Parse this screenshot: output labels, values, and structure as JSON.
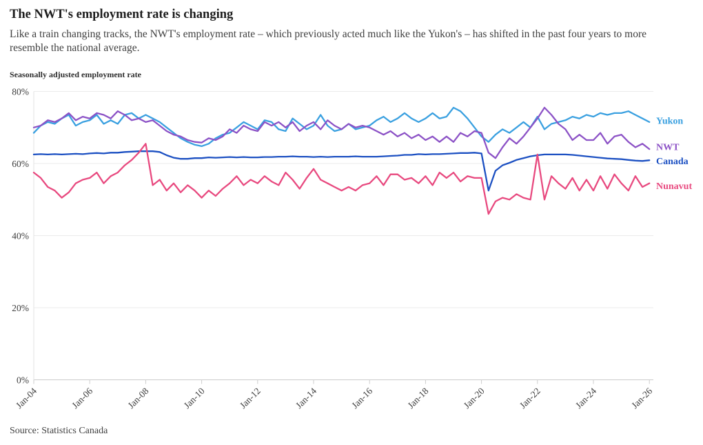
{
  "header": {
    "title": "The NWT's employment rate is changing",
    "subtitle": "Like a train changing tracks, the NWT's employment rate – which previously acted much like the Yukon's – has shifted in the past four years to more resemble the national average."
  },
  "footer": {
    "source": "Source: Statistics Canada"
  },
  "chart_data": {
    "type": "line",
    "title": "Seasonally adjusted employment rate",
    "xlabel": "",
    "ylabel": "Seasonally adjusted employment rate",
    "x_start": 2004,
    "x_step": 0.25,
    "xlim": [
      2004,
      2026
    ],
    "ylim": [
      0,
      80
    ],
    "grid": "horizontal",
    "legend_position": "right-end-labels",
    "yticks": [
      0,
      20,
      40,
      60,
      80
    ],
    "ytick_suffix": "%",
    "xticks": [
      2004,
      2006,
      2008,
      2010,
      2012,
      2014,
      2016,
      2018,
      2020,
      2022,
      2024,
      2026
    ],
    "xtick_labels": [
      "Jan-04",
      "Jan-06",
      "Jan-08",
      "Jan-10",
      "Jan-12",
      "Jan-14",
      "Jan-16",
      "Jan-18",
      "Jan-20",
      "Jan-22",
      "Jan-24",
      "Jan-26"
    ],
    "series": [
      {
        "name": "Yukon",
        "color": "#3AA0E0",
        "label_dy": -2,
        "values": [
          68.5,
          70.5,
          71.5,
          71.0,
          72.5,
          73.5,
          70.5,
          71.5,
          72.0,
          73.5,
          71.0,
          72.0,
          71.0,
          73.5,
          74.0,
          72.5,
          73.5,
          72.5,
          71.5,
          70.0,
          68.5,
          67.0,
          66.0,
          65.2,
          64.8,
          65.5,
          67.0,
          68.0,
          68.5,
          70.0,
          71.5,
          70.5,
          69.5,
          72.0,
          71.5,
          69.5,
          69.0,
          72.5,
          71.0,
          69.5,
          70.5,
          73.5,
          70.5,
          69.0,
          69.5,
          71.0,
          69.5,
          70.0,
          70.5,
          72.0,
          73.0,
          71.5,
          72.5,
          74.0,
          72.5,
          71.5,
          72.5,
          74.0,
          72.5,
          73.0,
          75.5,
          74.5,
          72.5,
          70.0,
          67.5,
          66.0,
          68.0,
          69.5,
          68.5,
          70.0,
          71.5,
          70.0,
          73.0,
          69.5,
          71.0,
          71.5,
          72.0,
          73.0,
          72.5,
          73.5,
          73.0,
          74.0,
          73.5,
          74.0,
          74.0,
          74.5,
          73.5,
          72.5,
          71.5
        ]
      },
      {
        "name": "NWT",
        "color": "#8C52C6",
        "label_dy": -3,
        "values": [
          70.0,
          70.5,
          72.0,
          71.5,
          72.5,
          74.0,
          72.0,
          73.0,
          72.5,
          74.0,
          73.5,
          72.5,
          74.5,
          73.5,
          72.0,
          72.5,
          71.5,
          72.0,
          70.5,
          69.0,
          68.0,
          67.5,
          66.5,
          66.0,
          65.8,
          67.0,
          66.5,
          67.5,
          69.5,
          68.5,
          70.5,
          69.5,
          69.0,
          71.5,
          70.5,
          71.5,
          70.0,
          71.5,
          69.0,
          70.5,
          71.5,
          69.5,
          72.0,
          70.5,
          69.5,
          71.0,
          70.0,
          70.5,
          70.0,
          69.0,
          68.0,
          69.0,
          67.5,
          68.5,
          67.0,
          68.0,
          66.5,
          67.5,
          66.0,
          67.5,
          66.0,
          68.5,
          67.5,
          69.0,
          68.5,
          63.0,
          61.5,
          64.5,
          67.0,
          65.5,
          67.5,
          70.0,
          72.5,
          75.5,
          73.5,
          71.0,
          69.5,
          66.5,
          68.0,
          66.5,
          66.5,
          68.5,
          65.5,
          67.5,
          68.0,
          66.0,
          64.5,
          65.5,
          64.0
        ]
      },
      {
        "name": "Canada",
        "color": "#1C50C2",
        "label_dy": 1,
        "values": [
          62.5,
          62.6,
          62.5,
          62.6,
          62.5,
          62.6,
          62.7,
          62.6,
          62.8,
          62.9,
          62.8,
          63.0,
          63.0,
          63.2,
          63.3,
          63.4,
          63.4,
          63.4,
          63.2,
          62.3,
          61.6,
          61.3,
          61.3,
          61.5,
          61.5,
          61.7,
          61.6,
          61.7,
          61.8,
          61.7,
          61.8,
          61.7,
          61.7,
          61.8,
          61.8,
          61.9,
          61.9,
          62.0,
          61.9,
          61.9,
          61.8,
          61.9,
          61.8,
          61.9,
          61.9,
          61.9,
          62.0,
          61.9,
          61.9,
          61.9,
          62.0,
          62.1,
          62.2,
          62.4,
          62.4,
          62.6,
          62.5,
          62.6,
          62.6,
          62.7,
          62.8,
          62.9,
          62.9,
          63.0,
          62.8,
          52.5,
          58.0,
          59.5,
          60.2,
          61.0,
          61.5,
          62.0,
          62.3,
          62.5,
          62.5,
          62.5,
          62.5,
          62.4,
          62.2,
          62.0,
          61.8,
          61.6,
          61.4,
          61.3,
          61.2,
          61.0,
          60.8,
          60.7,
          60.9
        ]
      },
      {
        "name": "Nunavut",
        "color": "#E8497F",
        "label_dy": 4,
        "values": [
          57.5,
          56.0,
          53.5,
          52.5,
          50.5,
          52.0,
          54.5,
          55.5,
          56.0,
          57.5,
          54.5,
          56.5,
          57.5,
          59.5,
          61.0,
          63.0,
          65.5,
          54.0,
          55.5,
          52.5,
          54.5,
          52.0,
          54.0,
          52.5,
          50.5,
          52.5,
          51.0,
          53.0,
          54.5,
          56.5,
          54.0,
          55.5,
          54.5,
          56.5,
          55.0,
          54.0,
          57.5,
          55.5,
          53.0,
          56.0,
          58.5,
          55.5,
          54.5,
          53.5,
          52.5,
          53.5,
          52.5,
          54.0,
          54.5,
          56.5,
          54.0,
          57.0,
          57.0,
          55.5,
          56.0,
          54.5,
          56.5,
          54.0,
          57.5,
          56.0,
          57.5,
          55.0,
          56.5,
          56.0,
          56.0,
          46.0,
          49.5,
          50.5,
          50.0,
          51.5,
          50.5,
          50.0,
          62.5,
          50.0,
          56.5,
          54.5,
          53.0,
          56.0,
          52.5,
          55.5,
          52.5,
          56.5,
          53.0,
          57.0,
          54.5,
          52.5,
          56.5,
          53.5,
          54.5
        ]
      }
    ],
    "style_colors": {
      "grid": "#ebebeb",
      "axis": "#cccccc",
      "left_axis": "#e3e3e3",
      "tick_text": "#3d3d3d"
    }
  }
}
